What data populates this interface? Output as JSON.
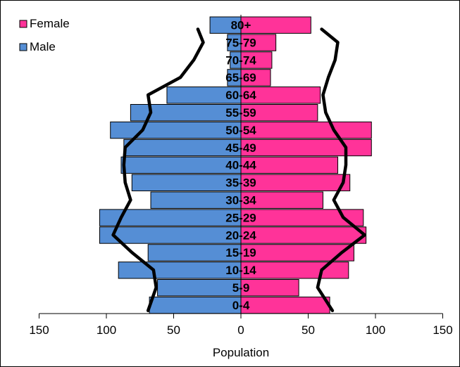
{
  "chart_data": {
    "type": "bar",
    "orientation": "horizontal",
    "layout": "population-pyramid",
    "categories": [
      "0-4",
      "5-9",
      "10-14",
      "15-19",
      "20-24",
      "25-29",
      "30-34",
      "35-39",
      "40-44",
      "45-49",
      "50-54",
      "55-59",
      "60-64",
      "65-69",
      "70-74",
      "75-79",
      "80+"
    ],
    "series": [
      {
        "name": "Female",
        "side": "right",
        "color": "#ff3399",
        "values": [
          66,
          43,
          80,
          84,
          93,
          91,
          61,
          81,
          72,
          97,
          97,
          57,
          59,
          22,
          23,
          26,
          52
        ]
      },
      {
        "name": "Male",
        "side": "left",
        "color": "#558ed5",
        "values": [
          68,
          62,
          91,
          69,
          105,
          105,
          67,
          81,
          89,
          87,
          97,
          82,
          55,
          10,
          8,
          10,
          23
        ]
      }
    ],
    "overlay_lines": [
      {
        "side": "right",
        "color": "#000000",
        "values": [
          68,
          57,
          60,
          75,
          92,
          76,
          69,
          76,
          78,
          78,
          69,
          63,
          61,
          65,
          70,
          72,
          60
        ]
      },
      {
        "side": "left",
        "color": "#000000",
        "values": [
          69,
          63,
          65,
          81,
          95,
          89,
          82,
          86,
          87,
          86,
          73,
          67,
          69,
          45,
          35,
          28,
          32
        ]
      }
    ],
    "xlabel": "Population",
    "ylabel": "",
    "xlim": [
      -150,
      150
    ],
    "xticks": [
      -150,
      -100,
      -50,
      0,
      50,
      100,
      150
    ],
    "xtick_labels": [
      "150",
      "100",
      "50",
      "0",
      "50",
      "100",
      "150"
    ],
    "grid": false,
    "legend_position": "top-left"
  },
  "legend": {
    "items": [
      {
        "label": "Female",
        "color": "#ff3399"
      },
      {
        "label": "Male",
        "color": "#558ed5"
      }
    ]
  },
  "axis": {
    "xlabel": "Population"
  }
}
